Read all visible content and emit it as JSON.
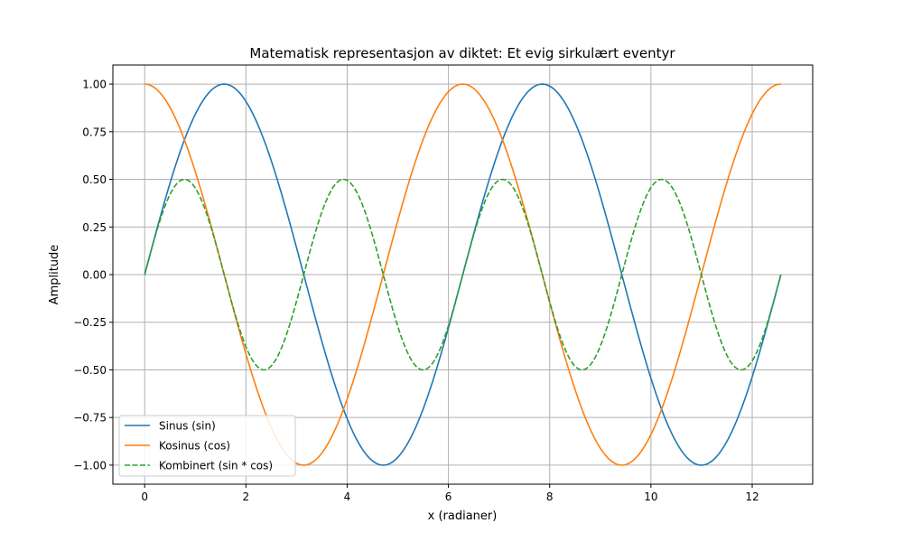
{
  "chart_data": {
    "type": "line",
    "title": "Matematisk representasjon av diktet: Et evig sirkulært eventyr",
    "xlabel": "x (radianer)",
    "ylabel": "Amplitude",
    "xlim": [
      -0.628,
      13.195
    ],
    "ylim": [
      -1.1,
      1.1
    ],
    "x_domain": [
      0,
      12.566
    ],
    "x_ticks": [
      0,
      2,
      4,
      6,
      8,
      10,
      12
    ],
    "x_tick_labels": [
      "0",
      "2",
      "4",
      "6",
      "8",
      "10",
      "12"
    ],
    "y_ticks": [
      -1.0,
      -0.75,
      -0.5,
      -0.25,
      0.0,
      0.25,
      0.5,
      0.75,
      1.0
    ],
    "y_tick_labels": [
      "−1.00",
      "−0.75",
      "−0.50",
      "−0.25",
      "0.00",
      "0.25",
      "0.50",
      "0.75",
      "1.00"
    ],
    "grid": true,
    "legend_position": "lower-left",
    "series": [
      {
        "name": "Sinus (sin)",
        "function": "sin(x)",
        "color": "#1f77b4",
        "style": "solid"
      },
      {
        "name": "Kosinus (cos)",
        "function": "cos(x)",
        "color": "#ff7f0e",
        "style": "solid"
      },
      {
        "name": "Kombinert (sin * cos)",
        "function": "sin(x)*cos(x)",
        "color": "#2ca02c",
        "style": "dashed"
      }
    ]
  }
}
